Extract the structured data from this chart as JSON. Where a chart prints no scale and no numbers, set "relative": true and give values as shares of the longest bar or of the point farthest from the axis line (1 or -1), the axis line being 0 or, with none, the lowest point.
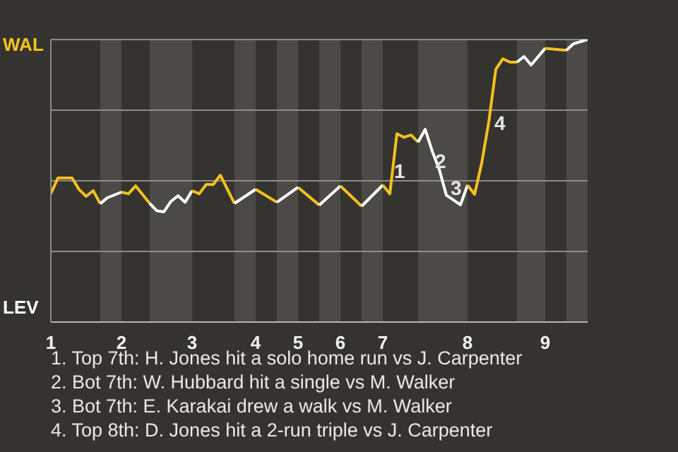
{
  "chart_data": {
    "type": "line",
    "relative": true,
    "categories": [
      "1",
      null,
      null,
      null,
      null,
      null,
      null,
      null,
      null,
      null,
      "2",
      null,
      null,
      null,
      null,
      null,
      null,
      null,
      null,
      null,
      "3",
      null,
      null,
      null,
      null,
      null,
      null,
      null,
      null,
      "4",
      null,
      null,
      null,
      null,
      null,
      "5",
      null,
      null,
      null,
      null,
      null,
      "6",
      null,
      null,
      null,
      null,
      null,
      "7",
      null,
      null,
      null,
      null,
      null,
      null,
      null,
      null,
      null,
      null,
      null,
      "8",
      null,
      null,
      null,
      null,
      null,
      null,
      null,
      null,
      null,
      null,
      "9",
      null,
      null,
      null,
      null,
      null,
      null
    ],
    "series": [
      {
        "name": "WAL",
        "color": "#f5c020",
        "values": [
          0.454,
          0.51,
          null,
          0.51,
          0.469,
          0.445,
          0.465,
          0.419,
          null,
          null,
          null,
          null,
          null,
          null,
          null,
          null,
          null,
          null,
          null,
          null,
          null,
          null,
          null,
          null,
          null,
          null,
          null,
          null,
          null,
          null,
          null,
          null,
          null,
          null,
          null,
          null,
          null,
          null,
          null,
          null,
          null,
          null,
          null,
          null,
          null,
          null,
          null,
          null,
          null,
          null,
          null,
          null,
          null,
          null,
          null,
          null,
          null,
          null,
          null,
          null,
          null,
          null,
          null,
          null,
          null,
          null,
          null,
          null,
          null,
          null,
          null,
          null,
          null,
          null,
          null,
          null,
          null
        ]
      },
      {
        "name": "LEV",
        "color": "#ffffff",
        "values": [
          null,
          null,
          null,
          null,
          null,
          null,
          null,
          0.419,
          0.44,
          null,
          0.46,
          null,
          null,
          null,
          null,
          null,
          null,
          null,
          null,
          null,
          null,
          null,
          null,
          null,
          null,
          null,
          null,
          null,
          null,
          null,
          null,
          null,
          null,
          null,
          null,
          null,
          null,
          null,
          null,
          null,
          null,
          null,
          null,
          null,
          null,
          null,
          null,
          null,
          null,
          null,
          null,
          null,
          null,
          null,
          null,
          null,
          null,
          null,
          null,
          null,
          null,
          null,
          null,
          null,
          null,
          null,
          null,
          null,
          null,
          null,
          null,
          null,
          null,
          null,
          null,
          null,
          null
        ]
      },
      {
        "color": "#f5c020",
        "values": [
          null,
          null,
          null,
          null,
          null,
          null,
          null,
          null,
          null,
          null,
          0.46,
          0.454,
          0.482,
          null,
          0.42,
          null,
          null,
          null,
          null,
          null,
          null,
          null,
          null,
          null,
          null,
          null,
          null,
          null,
          null,
          null,
          null,
          null,
          null,
          null,
          null,
          null,
          null,
          null,
          null,
          null,
          null,
          null,
          null,
          null,
          null,
          null,
          null,
          null,
          null,
          null,
          null,
          null,
          null,
          null,
          null,
          null,
          null,
          null,
          null,
          null,
          null,
          null,
          null,
          null,
          null,
          null,
          null,
          null,
          null,
          null,
          null,
          null,
          null,
          null,
          null,
          null,
          null
        ]
      },
      {
        "color": "#ffffff",
        "values": [
          null,
          null,
          null,
          null,
          null,
          null,
          null,
          null,
          null,
          null,
          null,
          null,
          null,
          null,
          0.42,
          0.394,
          0.39,
          0.427,
          0.447,
          0.424,
          0.465,
          null,
          null,
          null,
          null,
          null,
          null,
          null,
          null,
          null,
          null,
          null,
          null,
          null,
          null,
          null,
          null,
          null,
          null,
          null,
          null,
          null,
          null,
          null,
          null,
          null,
          null,
          null,
          null,
          null,
          null,
          null,
          null,
          null,
          null,
          null,
          null,
          null,
          null,
          null,
          null,
          null,
          null,
          null,
          null,
          null,
          null,
          null,
          null,
          null,
          null,
          null,
          null,
          null,
          null,
          null,
          null
        ]
      },
      {
        "color": "#f5c020",
        "values": [
          null,
          null,
          null,
          null,
          null,
          null,
          null,
          null,
          null,
          null,
          null,
          null,
          null,
          null,
          null,
          null,
          null,
          null,
          null,
          null,
          0.465,
          0.454,
          0.487,
          0.487,
          0.52,
          null,
          0.42,
          null,
          null,
          null,
          null,
          null,
          null,
          null,
          null,
          null,
          null,
          null,
          null,
          null,
          null,
          null,
          null,
          null,
          null,
          null,
          null,
          null,
          null,
          null,
          null,
          null,
          null,
          null,
          null,
          null,
          null,
          null,
          null,
          null,
          null,
          null,
          null,
          null,
          null,
          null,
          null,
          null,
          null,
          null,
          null,
          null,
          null,
          null,
          null,
          null,
          null
        ]
      },
      {
        "color": "#ffffff",
        "values": [
          null,
          null,
          null,
          null,
          null,
          null,
          null,
          null,
          null,
          null,
          null,
          null,
          null,
          null,
          null,
          null,
          null,
          null,
          null,
          null,
          null,
          null,
          null,
          null,
          null,
          null,
          0.42,
          null,
          null,
          0.47,
          null,
          null,
          null,
          null,
          null,
          null,
          null,
          null,
          null,
          null,
          null,
          null,
          null,
          null,
          null,
          null,
          null,
          null,
          null,
          null,
          null,
          null,
          null,
          null,
          null,
          null,
          null,
          null,
          null,
          null,
          null,
          null,
          null,
          null,
          null,
          null,
          null,
          null,
          null,
          null,
          null,
          null,
          null,
          null,
          null,
          null,
          null
        ]
      },
      {
        "color": "#f5c020",
        "values": [
          null,
          null,
          null,
          null,
          null,
          null,
          null,
          null,
          null,
          null,
          null,
          null,
          null,
          null,
          null,
          null,
          null,
          null,
          null,
          null,
          null,
          null,
          null,
          null,
          null,
          null,
          null,
          null,
          null,
          0.47,
          null,
          null,
          0.424,
          null,
          null,
          null,
          null,
          null,
          null,
          null,
          null,
          null,
          null,
          null,
          null,
          null,
          null,
          null,
          null,
          null,
          null,
          null,
          null,
          null,
          null,
          null,
          null,
          null,
          null,
          null,
          null,
          null,
          null,
          null,
          null,
          null,
          null,
          null,
          null,
          null,
          null,
          null,
          null,
          null,
          null,
          null,
          null
        ]
      },
      {
        "color": "#ffffff",
        "values": [
          null,
          null,
          null,
          null,
          null,
          null,
          null,
          null,
          null,
          null,
          null,
          null,
          null,
          null,
          null,
          null,
          null,
          null,
          null,
          null,
          null,
          null,
          null,
          null,
          null,
          null,
          null,
          null,
          null,
          null,
          null,
          null,
          0.424,
          null,
          null,
          0.477,
          null,
          null,
          null,
          null,
          null,
          null,
          null,
          null,
          null,
          null,
          null,
          null,
          null,
          null,
          null,
          null,
          null,
          null,
          null,
          null,
          null,
          null,
          null,
          null,
          null,
          null,
          null,
          null,
          null,
          null,
          null,
          null,
          null,
          null,
          null,
          null,
          null,
          null,
          null,
          null,
          null
        ]
      },
      {
        "color": "#f5c020",
        "values": [
          null,
          null,
          null,
          null,
          null,
          null,
          null,
          null,
          null,
          null,
          null,
          null,
          null,
          null,
          null,
          null,
          null,
          null,
          null,
          null,
          null,
          null,
          null,
          null,
          null,
          null,
          null,
          null,
          null,
          null,
          null,
          null,
          null,
          null,
          null,
          0.477,
          null,
          null,
          0.414,
          null,
          null,
          null,
          null,
          null,
          null,
          null,
          null,
          null,
          null,
          null,
          null,
          null,
          null,
          null,
          null,
          null,
          null,
          null,
          null,
          null,
          null,
          null,
          null,
          null,
          null,
          null,
          null,
          null,
          null,
          null,
          null,
          null,
          null,
          null,
          null,
          null,
          null
        ]
      },
      {
        "color": "#ffffff",
        "values": [
          null,
          null,
          null,
          null,
          null,
          null,
          null,
          null,
          null,
          null,
          null,
          null,
          null,
          null,
          null,
          null,
          null,
          null,
          null,
          null,
          null,
          null,
          null,
          null,
          null,
          null,
          null,
          null,
          null,
          null,
          null,
          null,
          null,
          null,
          null,
          null,
          null,
          null,
          0.414,
          null,
          null,
          0.482,
          null,
          null,
          null,
          null,
          null,
          null,
          null,
          null,
          null,
          null,
          null,
          null,
          null,
          null,
          null,
          null,
          null,
          null,
          null,
          null,
          null,
          null,
          null,
          null,
          null,
          null,
          null,
          null,
          null,
          null,
          null,
          null,
          null,
          null,
          null
        ]
      },
      {
        "color": "#f5c020",
        "values": [
          null,
          null,
          null,
          null,
          null,
          null,
          null,
          null,
          null,
          null,
          null,
          null,
          null,
          null,
          null,
          null,
          null,
          null,
          null,
          null,
          null,
          null,
          null,
          null,
          null,
          null,
          null,
          null,
          null,
          null,
          null,
          null,
          null,
          null,
          null,
          null,
          null,
          null,
          null,
          null,
          null,
          0.482,
          null,
          null,
          0.41,
          null,
          null,
          null,
          null,
          null,
          null,
          null,
          null,
          null,
          null,
          null,
          null,
          null,
          null,
          null,
          null,
          null,
          null,
          null,
          null,
          null,
          null,
          null,
          null,
          null,
          null,
          null,
          null,
          null,
          null,
          null,
          null
        ]
      },
      {
        "color": "#ffffff",
        "values": [
          null,
          null,
          null,
          null,
          null,
          null,
          null,
          null,
          null,
          null,
          null,
          null,
          null,
          null,
          null,
          null,
          null,
          null,
          null,
          null,
          null,
          null,
          null,
          null,
          null,
          null,
          null,
          null,
          null,
          null,
          null,
          null,
          null,
          null,
          null,
          null,
          null,
          null,
          null,
          null,
          null,
          null,
          null,
          null,
          0.41,
          null,
          null,
          0.485,
          null,
          null,
          null,
          null,
          null,
          null,
          null,
          null,
          null,
          null,
          null,
          null,
          null,
          null,
          null,
          null,
          null,
          null,
          null,
          null,
          null,
          null,
          null,
          null,
          null,
          null,
          null,
          null,
          null
        ]
      },
      {
        "color": "#f5c020",
        "values": [
          null,
          null,
          null,
          null,
          null,
          null,
          null,
          null,
          null,
          null,
          null,
          null,
          null,
          null,
          null,
          null,
          null,
          null,
          null,
          null,
          null,
          null,
          null,
          null,
          null,
          null,
          null,
          null,
          null,
          null,
          null,
          null,
          null,
          null,
          null,
          null,
          null,
          null,
          null,
          null,
          null,
          null,
          null,
          null,
          null,
          null,
          null,
          0.485,
          0.454,
          0.667,
          0.654,
          0.662,
          0.637,
          null,
          null,
          null,
          null,
          null,
          null,
          null,
          null,
          null,
          null,
          null,
          null,
          null,
          null,
          null,
          null,
          null,
          null,
          null,
          null,
          null,
          null,
          null,
          null
        ]
      },
      {
        "color": "#ffffff",
        "values": [
          null,
          null,
          null,
          null,
          null,
          null,
          null,
          null,
          null,
          null,
          null,
          null,
          null,
          null,
          null,
          null,
          null,
          null,
          null,
          null,
          null,
          null,
          null,
          null,
          null,
          null,
          null,
          null,
          null,
          null,
          null,
          null,
          null,
          null,
          null,
          null,
          null,
          null,
          null,
          null,
          null,
          null,
          null,
          null,
          null,
          null,
          null,
          null,
          null,
          null,
          null,
          null,
          0.637,
          0.682,
          0.605,
          0.54,
          0.449,
          0.432,
          0.415,
          0.485,
          null,
          null,
          null,
          null,
          null,
          null,
          null,
          null,
          null,
          null,
          null,
          null,
          null,
          null,
          null,
          null,
          null
        ]
      },
      {
        "color": "#f5c020",
        "values": [
          null,
          null,
          null,
          null,
          null,
          null,
          null,
          null,
          null,
          null,
          null,
          null,
          null,
          null,
          null,
          null,
          null,
          null,
          null,
          null,
          null,
          null,
          null,
          null,
          null,
          null,
          null,
          null,
          null,
          null,
          null,
          null,
          null,
          null,
          null,
          null,
          null,
          null,
          null,
          null,
          null,
          null,
          null,
          null,
          null,
          null,
          null,
          null,
          null,
          null,
          null,
          null,
          null,
          null,
          null,
          null,
          null,
          null,
          null,
          0.485,
          0.452,
          0.562,
          0.707,
          0.894,
          0.932,
          0.92,
          0.92,
          null,
          null,
          null,
          null,
          null,
          null,
          null,
          null,
          null,
          null
        ]
      },
      {
        "color": "#ffffff",
        "values": [
          null,
          null,
          null,
          null,
          null,
          null,
          null,
          null,
          null,
          null,
          null,
          null,
          null,
          null,
          null,
          null,
          null,
          null,
          null,
          null,
          null,
          null,
          null,
          null,
          null,
          null,
          null,
          null,
          null,
          null,
          null,
          null,
          null,
          null,
          null,
          null,
          null,
          null,
          null,
          null,
          null,
          null,
          null,
          null,
          null,
          null,
          null,
          null,
          null,
          null,
          null,
          null,
          null,
          null,
          null,
          null,
          null,
          null,
          null,
          null,
          null,
          null,
          null,
          null,
          null,
          null,
          0.92,
          0.94,
          0.91,
          null,
          0.969,
          null,
          null,
          null,
          null,
          null,
          null
        ]
      },
      {
        "color": "#f5c020",
        "values": [
          null,
          null,
          null,
          null,
          null,
          null,
          null,
          null,
          null,
          null,
          null,
          null,
          null,
          null,
          null,
          null,
          null,
          null,
          null,
          null,
          null,
          null,
          null,
          null,
          null,
          null,
          null,
          null,
          null,
          null,
          null,
          null,
          null,
          null,
          null,
          null,
          null,
          null,
          null,
          null,
          null,
          null,
          null,
          null,
          null,
          null,
          null,
          null,
          null,
          null,
          null,
          null,
          null,
          null,
          null,
          null,
          null,
          null,
          null,
          null,
          null,
          null,
          null,
          null,
          null,
          null,
          null,
          null,
          null,
          null,
          0.969,
          null,
          null,
          0.962,
          null,
          null,
          null
        ]
      },
      {
        "color": "#ffffff",
        "values": [
          null,
          null,
          null,
          null,
          null,
          null,
          null,
          null,
          null,
          null,
          null,
          null,
          null,
          null,
          null,
          null,
          null,
          null,
          null,
          null,
          null,
          null,
          null,
          null,
          null,
          null,
          null,
          null,
          null,
          null,
          null,
          null,
          null,
          null,
          null,
          null,
          null,
          null,
          null,
          null,
          null,
          null,
          null,
          null,
          null,
          null,
          null,
          null,
          null,
          null,
          null,
          null,
          null,
          null,
          null,
          null,
          null,
          null,
          null,
          null,
          null,
          null,
          null,
          null,
          null,
          null,
          null,
          null,
          null,
          null,
          null,
          null,
          null,
          0.962,
          0.985,
          null,
          1
        ]
      }
    ],
    "grid": "y",
    "legend": "left",
    "marker": "none",
    "annotations": [
      "1",
      "2",
      "3",
      "4",
      "1. Top 7th: H. Jones hit a solo home run vs J. Carpenter",
      "2. Bot 7th: W. Hubbard hit a single vs M. Walker",
      "3. Bot 7th: E. Karakai drew a walk vs M. Walker",
      "4. Top 8th: D. Jones hit a 2-run triple vs J. Carpenter"
    ]
  }
}
